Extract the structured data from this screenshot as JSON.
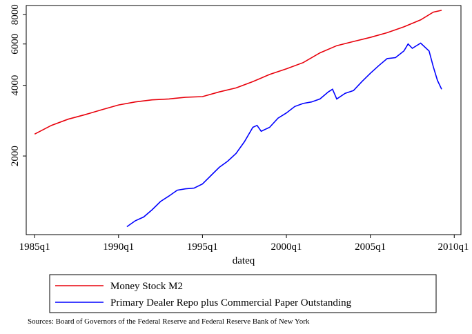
{
  "chart_data": {
    "type": "line",
    "x_label": "dateq",
    "note": "Sources: Board of Governors of the Federal Reserve and Federal Reserve Bank of New York",
    "log_y": true,
    "xlim": [
      1984.5,
      2010.4
    ],
    "ylim": [
      925,
      8750
    ],
    "xticks": [
      {
        "value": 1985,
        "label": "1985q1"
      },
      {
        "value": 1990,
        "label": "1990q1"
      },
      {
        "value": 1995,
        "label": "1995q1"
      },
      {
        "value": 2000,
        "label": "2000q1"
      },
      {
        "value": 2005,
        "label": "2005q1"
      },
      {
        "value": 2010,
        "label": "2010q1"
      }
    ],
    "yticks": [
      2000,
      4000,
      6000,
      8000
    ],
    "series": [
      {
        "name": "Money Stock M2",
        "color": "#e8000b",
        "x": [
          1985,
          1986,
          1987,
          1988,
          1989,
          1990,
          1991,
          1992,
          1993,
          1994,
          1995,
          1996,
          1997,
          1998,
          1999,
          2000,
          2001,
          2002,
          2003,
          2004,
          2005,
          2006,
          2007,
          2008,
          2008.75,
          2009.25
        ],
        "values": [
          2480,
          2700,
          2870,
          3000,
          3150,
          3300,
          3400,
          3470,
          3500,
          3560,
          3580,
          3750,
          3900,
          4150,
          4450,
          4700,
          5000,
          5500,
          5900,
          6150,
          6400,
          6700,
          7100,
          7600,
          8200,
          8350
        ]
      },
      {
        "name": "Primary Dealer Repo plus Commercial Paper Outstanding",
        "color": "#0000ff",
        "x": [
          1990.5,
          1991,
          1991.5,
          1992,
          1992.5,
          1993,
          1993.5,
          1994,
          1994.5,
          1995,
          1995.5,
          1996,
          1996.5,
          1997,
          1997.5,
          1998,
          1998.25,
          1998.5,
          1999,
          1999.5,
          2000,
          2000.5,
          2001,
          2001.5,
          2002,
          2002.5,
          2002.75,
          2003,
          2003.5,
          2004,
          2004.5,
          2005,
          2005.5,
          2006,
          2006.5,
          2007,
          2007.25,
          2007.5,
          2008,
          2008.5,
          2008.75,
          2009,
          2009.25
        ],
        "values": [
          1000,
          1060,
          1100,
          1180,
          1280,
          1350,
          1430,
          1450,
          1460,
          1520,
          1650,
          1790,
          1900,
          2050,
          2300,
          2650,
          2700,
          2550,
          2650,
          2900,
          3050,
          3250,
          3350,
          3400,
          3500,
          3750,
          3850,
          3500,
          3700,
          3800,
          4150,
          4500,
          4850,
          5200,
          5250,
          5600,
          6000,
          5750,
          6050,
          5600,
          4800,
          4200,
          3850
        ]
      }
    ]
  }
}
